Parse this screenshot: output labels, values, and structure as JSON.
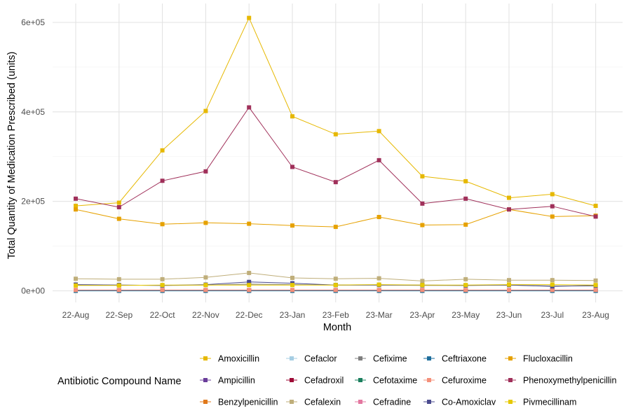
{
  "chart_data": {
    "type": "line",
    "xlabel": "Month",
    "ylabel": "Total Quantity of Medication Prescribed (units)",
    "categories": [
      "22-Aug",
      "22-Sep",
      "22-Oct",
      "22-Nov",
      "22-Dec",
      "23-Jan",
      "23-Feb",
      "23-Mar",
      "23-Apr",
      "23-May",
      "23-Jun",
      "23-Jul",
      "23-Aug"
    ],
    "ylim": [
      -25000,
      640000
    ],
    "yticks": [
      0,
      200000,
      400000,
      600000
    ],
    "ytick_labels": [
      "0e+00",
      "2e+05",
      "4e+05",
      "6e+05"
    ],
    "grid": true,
    "legend": {
      "title": "Antibiotic Compound Name",
      "placement": "bottom",
      "columns": 5
    },
    "series": [
      {
        "name": "Amoxicillin",
        "color": "#E6B800",
        "values": [
          190000,
          197000,
          314000,
          402000,
          610000,
          390000,
          350000,
          357000,
          256000,
          245000,
          208000,
          216000,
          190000
        ]
      },
      {
        "name": "Ampicillin",
        "color": "#6A3D9A",
        "values": [
          200,
          200,
          200,
          200,
          200,
          200,
          200,
          200,
          200,
          200,
          200,
          200,
          200
        ]
      },
      {
        "name": "Benzylpenicillin",
        "color": "#E0781A",
        "values": [
          1500,
          1500,
          1500,
          1500,
          1500,
          1500,
          1500,
          1500,
          1500,
          1500,
          1500,
          1500,
          1500
        ]
      },
      {
        "name": "Cefaclor",
        "color": "#A6CEE3",
        "values": [
          500,
          500,
          500,
          500,
          500,
          500,
          500,
          500,
          500,
          500,
          500,
          500,
          500
        ]
      },
      {
        "name": "Cefadroxil",
        "color": "#9E0A36",
        "values": [
          800,
          800,
          800,
          800,
          800,
          800,
          800,
          800,
          800,
          800,
          800,
          800,
          800
        ]
      },
      {
        "name": "Cefalexin",
        "color": "#BFAE7A",
        "values": [
          27000,
          26000,
          26000,
          30000,
          40000,
          29000,
          27000,
          28000,
          22000,
          26000,
          24000,
          24000,
          23000
        ]
      },
      {
        "name": "Cefixime",
        "color": "#7F7F7F",
        "values": [
          13000,
          13000,
          12000,
          13000,
          15000,
          14000,
          13000,
          13000,
          12000,
          12000,
          13000,
          11000,
          11000
        ]
      },
      {
        "name": "Cefotaxime",
        "color": "#1B7F5E",
        "values": [
          300,
          300,
          300,
          300,
          300,
          300,
          300,
          300,
          300,
          300,
          300,
          300,
          300
        ]
      },
      {
        "name": "Cefradine",
        "color": "#E377A0",
        "values": [
          1000,
          1000,
          1000,
          1000,
          1000,
          1000,
          1000,
          1000,
          1000,
          1000,
          1000,
          1000,
          1000
        ]
      },
      {
        "name": "Ceftriaxone",
        "color": "#1F6E9C",
        "values": [
          400,
          400,
          400,
          400,
          400,
          400,
          400,
          400,
          400,
          400,
          400,
          400,
          400
        ]
      },
      {
        "name": "Cefuroxime",
        "color": "#F4907A",
        "values": [
          2000,
          2000,
          2000,
          2000,
          2000,
          2000,
          2000,
          2000,
          2000,
          2000,
          2000,
          2000,
          2000
        ]
      },
      {
        "name": "Co-Amoxiclav",
        "color": "#4B4B8F",
        "values": [
          14000,
          13000,
          12000,
          14000,
          20000,
          17000,
          13000,
          13000,
          13000,
          12000,
          13000,
          10000,
          12000
        ]
      },
      {
        "name": "Flucloxacillin",
        "color": "#E6A100",
        "values": [
          182000,
          161000,
          149000,
          152000,
          150000,
          146000,
          143000,
          165000,
          147000,
          148000,
          182000,
          166000,
          168000
        ]
      },
      {
        "name": "Phenoxymethylpenicillin",
        "color": "#A0305A",
        "values": [
          206000,
          187000,
          246000,
          267000,
          410000,
          277000,
          243000,
          292000,
          195000,
          206000,
          182000,
          189000,
          166000
        ]
      },
      {
        "name": "Pivmecillinam",
        "color": "#E6C800",
        "values": [
          12000,
          12000,
          13000,
          13000,
          13000,
          13000,
          13000,
          14000,
          13000,
          13000,
          14000,
          14000,
          13000
        ]
      }
    ]
  }
}
